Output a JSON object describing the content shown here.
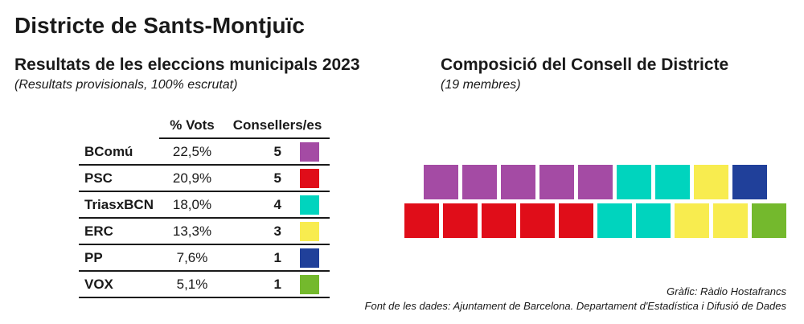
{
  "title": "Districte de Sants-Montjuïc",
  "results": {
    "heading": "Resultats de les eleccions municipals 2023",
    "subheading": "(Resultats provisionals, 100% escrutat)",
    "table": {
      "header_vots": "% Vots",
      "header_consellers": "Consellers/es",
      "rows": [
        {
          "party": "BComú",
          "vots": "22,5%",
          "seats": "5",
          "color": "#A44BA4"
        },
        {
          "party": "PSC",
          "vots": "20,9%",
          "seats": "5",
          "color": "#E00D19"
        },
        {
          "party": "TriasxBCN",
          "vots": "18,0%",
          "seats": "4",
          "color": "#00D4BE"
        },
        {
          "party": "ERC",
          "vots": "13,3%",
          "seats": "3",
          "color": "#F8EC4F"
        },
        {
          "party": "PP",
          "vots": "7,6%",
          "seats": "1",
          "color": "#20409A"
        },
        {
          "party": "VOX",
          "vots": "5,1%",
          "seats": "1",
          "color": "#74B92D"
        }
      ]
    }
  },
  "composition": {
    "heading": "Composició del Consell de Districte",
    "subheading": "(19 membres)",
    "seat_rows": [
      [
        "#A44BA4",
        "#A44BA4",
        "#A44BA4",
        "#A44BA4",
        "#A44BA4",
        "#00D4BE",
        "#00D4BE",
        "#F8EC4F",
        "#20409A"
      ],
      [
        "#E00D19",
        "#E00D19",
        "#E00D19",
        "#E00D19",
        "#E00D19",
        "#00D4BE",
        "#00D4BE",
        "#F8EC4F",
        "#F8EC4F",
        "#74B92D"
      ]
    ]
  },
  "footer": {
    "credit": "Gràfic: Ràdio Hostafrancs",
    "source": "Font de les dades: Ajuntament de Barcelona. Departament d'Estadística i Difusió de Dades"
  },
  "chart_data": [
    {
      "type": "table",
      "title": "Resultats de les eleccions municipals 2023",
      "subtitle": "(Resultats provisionals, 100% escrutat)",
      "categories": [
        "BComú",
        "PSC",
        "TriasxBCN",
        "ERC",
        "PP",
        "VOX"
      ],
      "series": [
        {
          "name": "% Vots",
          "values": [
            22.5,
            20.9,
            18.0,
            13.3,
            7.6,
            5.1
          ]
        },
        {
          "name": "Consellers/es",
          "values": [
            5,
            5,
            4,
            3,
            1,
            1
          ]
        }
      ],
      "party_colors": {
        "BComú": "#A44BA4",
        "PSC": "#E00D19",
        "TriasxBCN": "#00D4BE",
        "ERC": "#F8EC4F",
        "PP": "#20409A",
        "VOX": "#74B92D"
      }
    },
    {
      "type": "heatmap",
      "title": "Composició del Consell de Districte",
      "subtitle": "(19 membres)",
      "total_seats": 19,
      "rows": [
        [
          "BComú",
          "BComú",
          "BComú",
          "BComú",
          "BComú",
          "TriasxBCN",
          "TriasxBCN",
          "ERC",
          "PP"
        ],
        [
          "PSC",
          "PSC",
          "PSC",
          "PSC",
          "PSC",
          "TriasxBCN",
          "TriasxBCN",
          "ERC",
          "ERC",
          "VOX"
        ]
      ]
    }
  ]
}
